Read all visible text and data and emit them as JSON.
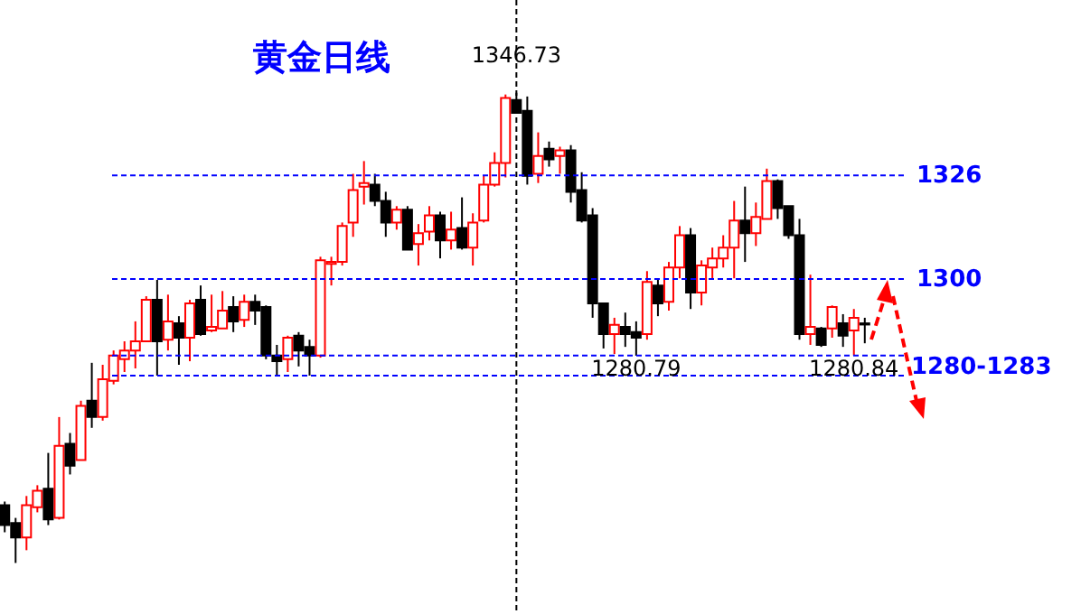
{
  "chart_data": {
    "type": "candlestick",
    "title": "黄金日线",
    "categories": [
      null,
      null,
      null,
      null,
      null,
      null,
      null,
      null,
      null,
      null,
      null,
      null,
      null,
      null,
      null,
      null,
      null,
      null,
      null,
      null,
      null,
      null,
      null,
      null,
      null,
      null,
      null,
      null,
      null,
      null,
      null,
      null,
      null,
      null,
      null,
      null,
      null,
      null,
      null,
      null,
      null,
      null,
      null,
      null,
      null,
      null,
      null,
      null,
      null,
      null,
      null,
      null,
      null,
      null,
      null,
      null,
      null,
      null,
      null,
      null,
      null,
      null,
      null,
      null,
      null,
      null,
      null,
      null,
      null,
      null,
      null,
      null,
      null,
      null,
      null,
      null,
      null,
      null,
      null,
      null
    ],
    "ohlc": [
      [
        1243.3,
        1244.2,
        1236.5,
        1238.3
      ],
      [
        1238.8,
        1240.1,
        1228.8,
        1235.2
      ],
      [
        1235.2,
        1245.6,
        1232.0,
        1243.3
      ],
      [
        1242.8,
        1248.3,
        1241.5,
        1246.9
      ],
      [
        1247.4,
        1256.4,
        1238.3,
        1239.7
      ],
      [
        1240.1,
        1265.4,
        1239.7,
        1258.2
      ],
      [
        1258.7,
        1261.4,
        1251.0,
        1253.2
      ],
      [
        1254.6,
        1269.5,
        1254.6,
        1268.2
      ],
      [
        1269.5,
        1279.0,
        1262.7,
        1265.4
      ],
      [
        1265.4,
        1278.5,
        1264.5,
        1274.9
      ],
      [
        1274.5,
        1282.1,
        1273.6,
        1280.8
      ],
      [
        1279.9,
        1284.4,
        1276.7,
        1282.1
      ],
      [
        1282.1,
        1289.4,
        1277.6,
        1284.4
      ],
      [
        1284.4,
        1295.7,
        1284.4,
        1294.8
      ],
      [
        1294.8,
        1299.8,
        1275.8,
        1284.4
      ],
      [
        1284.8,
        1296.1,
        1282.1,
        1289.4
      ],
      [
        1288.9,
        1290.7,
        1278.5,
        1285.3
      ],
      [
        1285.3,
        1294.8,
        1279.4,
        1293.9
      ],
      [
        1294.8,
        1298.4,
        1285.8,
        1286.2
      ],
      [
        1287.1,
        1296.1,
        1286.7,
        1288.0
      ],
      [
        1287.6,
        1297.0,
        1287.6,
        1292.1
      ],
      [
        1293.0,
        1295.7,
        1286.7,
        1289.4
      ],
      [
        1289.8,
        1296.1,
        1288.0,
        1294.3
      ],
      [
        1294.3,
        1296.1,
        1288.5,
        1292.1
      ],
      [
        1293.0,
        1293.4,
        1279.9,
        1280.8
      ],
      [
        1280.8,
        1283.5,
        1275.8,
        1279.4
      ],
      [
        1279.9,
        1285.8,
        1276.7,
        1285.3
      ],
      [
        1285.8,
        1286.7,
        1278.1,
        1282.1
      ],
      [
        1283.0,
        1284.8,
        1275.8,
        1280.8
      ],
      [
        1280.8,
        1305.6,
        1280.3,
        1304.7
      ],
      [
        1303.8,
        1305.6,
        1298.4,
        1304.3
      ],
      [
        1304.3,
        1314.2,
        1303.4,
        1313.3
      ],
      [
        1314.2,
        1326.4,
        1310.6,
        1322.3
      ],
      [
        1323.2,
        1329.6,
        1318.7,
        1324.1
      ],
      [
        1323.7,
        1326.4,
        1318.3,
        1319.6
      ],
      [
        1319.6,
        1321.9,
        1310.6,
        1314.2
      ],
      [
        1314.2,
        1318.3,
        1312.4,
        1317.4
      ],
      [
        1317.4,
        1318.3,
        1307.4,
        1307.4
      ],
      [
        1308.8,
        1313.8,
        1303.4,
        1311.5
      ],
      [
        1311.9,
        1318.3,
        1309.7,
        1316.0
      ],
      [
        1316.0,
        1316.9,
        1305.2,
        1309.7
      ],
      [
        1309.7,
        1316.9,
        1307.4,
        1312.4
      ],
      [
        1312.8,
        1320.5,
        1307.4,
        1307.9
      ],
      [
        1307.9,
        1316.5,
        1303.4,
        1314.2
      ],
      [
        1314.7,
        1325.9,
        1314.2,
        1323.7
      ],
      [
        1323.7,
        1331.8,
        1323.2,
        1329.1
      ],
      [
        1329.1,
        1346.3,
        1325.5,
        1345.4
      ],
      [
        1344.9,
        1346.73,
        1341.7,
        1341.7
      ],
      [
        1342.2,
        1345.8,
        1323.7,
        1325.9
      ],
      [
        1326.4,
        1336.8,
        1324.1,
        1330.9
      ],
      [
        1332.7,
        1334.5,
        1328.2,
        1330.0
      ],
      [
        1330.9,
        1333.2,
        1326.4,
        1332.3
      ],
      [
        1332.3,
        1333.6,
        1319.2,
        1321.9
      ],
      [
        1322.3,
        1326.8,
        1314.2,
        1314.7
      ],
      [
        1316.0,
        1317.8,
        1290.3,
        1293.9
      ],
      [
        1293.9,
        1293.9,
        1282.6,
        1286.2
      ],
      [
        1286.2,
        1290.3,
        1281.2,
        1288.5
      ],
      [
        1288.0,
        1291.6,
        1283.0,
        1286.2
      ],
      [
        1286.7,
        1289.4,
        1280.79,
        1285.3
      ],
      [
        1286.2,
        1302.0,
        1284.8,
        1299.3
      ],
      [
        1298.4,
        1299.8,
        1290.7,
        1293.9
      ],
      [
        1294.3,
        1304.3,
        1292.1,
        1302.9
      ],
      [
        1302.9,
        1313.3,
        1300.2,
        1311.0
      ],
      [
        1311.0,
        1312.8,
        1292.5,
        1296.6
      ],
      [
        1296.6,
        1304.7,
        1293.4,
        1303.4
      ],
      [
        1302.9,
        1307.9,
        1300.2,
        1305.2
      ],
      [
        1305.2,
        1311.0,
        1302.9,
        1307.9
      ],
      [
        1307.9,
        1319.6,
        1300.2,
        1314.7
      ],
      [
        1314.7,
        1323.2,
        1304.3,
        1311.5
      ],
      [
        1311.5,
        1319.2,
        1308.3,
        1315.6
      ],
      [
        1315.1,
        1327.7,
        1315.1,
        1324.6
      ],
      [
        1324.6,
        1325.0,
        1315.1,
        1317.8
      ],
      [
        1318.3,
        1318.3,
        1310.1,
        1311.0
      ],
      [
        1311.0,
        1315.1,
        1284.8,
        1286.2
      ],
      [
        1286.2,
        1301.1,
        1283.5,
        1288.0
      ],
      [
        1287.6,
        1288.0,
        1283.0,
        1283.5
      ],
      [
        1287.6,
        1293.4,
        1285.3,
        1293.0
      ],
      [
        1288.9,
        1291.2,
        1283.0,
        1285.8
      ],
      [
        1287.1,
        1292.5,
        1280.84,
        1290.3
      ],
      [
        1288.9,
        1290.3,
        1283.9,
        1288.6
      ]
    ],
    "colors": [
      "#000000",
      "#000000",
      "#ff0000",
      "#ff0000",
      "#000000",
      "#ff0000",
      "#000000",
      "#ff0000",
      "#000000",
      "#ff0000",
      "#ff0000",
      "#ff0000",
      "#ff0000",
      "#ff0000",
      "#000000",
      "#ff0000",
      "#000000",
      "#ff0000",
      "#000000",
      "#ff0000",
      "#ff0000",
      "#000000",
      "#ff0000",
      "#000000",
      "#000000",
      "#000000",
      "#ff0000",
      "#000000",
      "#000000",
      "#ff0000",
      "#ff0000",
      "#ff0000",
      "#ff0000",
      "#ff0000",
      "#000000",
      "#000000",
      "#ff0000",
      "#000000",
      "#ff0000",
      "#ff0000",
      "#000000",
      "#ff0000",
      "#000000",
      "#ff0000",
      "#ff0000",
      "#ff0000",
      "#ff0000",
      "#000000",
      "#000000",
      "#ff0000",
      "#000000",
      "#ff0000",
      "#000000",
      "#000000",
      "#000000",
      "#000000",
      "#ff0000",
      "#000000",
      "#000000",
      "#ff0000",
      "#000000",
      "#ff0000",
      "#ff0000",
      "#000000",
      "#ff0000",
      "#ff0000",
      "#ff0000",
      "#ff0000",
      "#000000",
      "#ff0000",
      "#ff0000",
      "#000000",
      "#000000",
      "#000000",
      "#ff0000",
      "#000000",
      "#ff0000",
      "#000000",
      "#ff0000",
      "#000000"
    ],
    "ylim": [
      1216,
      1370
    ],
    "tick_labels": false,
    "ref_lines": [
      {
        "axis": "y",
        "value": 1326,
        "label": "1326",
        "color": "#0000ff",
        "line_style": "dashed"
      },
      {
        "axis": "y",
        "value": 1300,
        "label": "1300",
        "color": "#0000ff",
        "line_style": "dashed"
      },
      {
        "axis": "y",
        "value": 1280.8,
        "label": null,
        "color": "#0000ff",
        "line_style": "dashed"
      },
      {
        "axis": "y",
        "value": 1275.8,
        "label": null,
        "color": "#0000ff",
        "line_style": "dashed"
      }
    ],
    "annotations": [
      "1280-1283",
      {
        "text": "1346.73",
        "y": 1346.73
      },
      {
        "text": "1280.79",
        "y": 1280.79
      },
      {
        "text": "1280.84",
        "y": 1280.84
      }
    ]
  }
}
